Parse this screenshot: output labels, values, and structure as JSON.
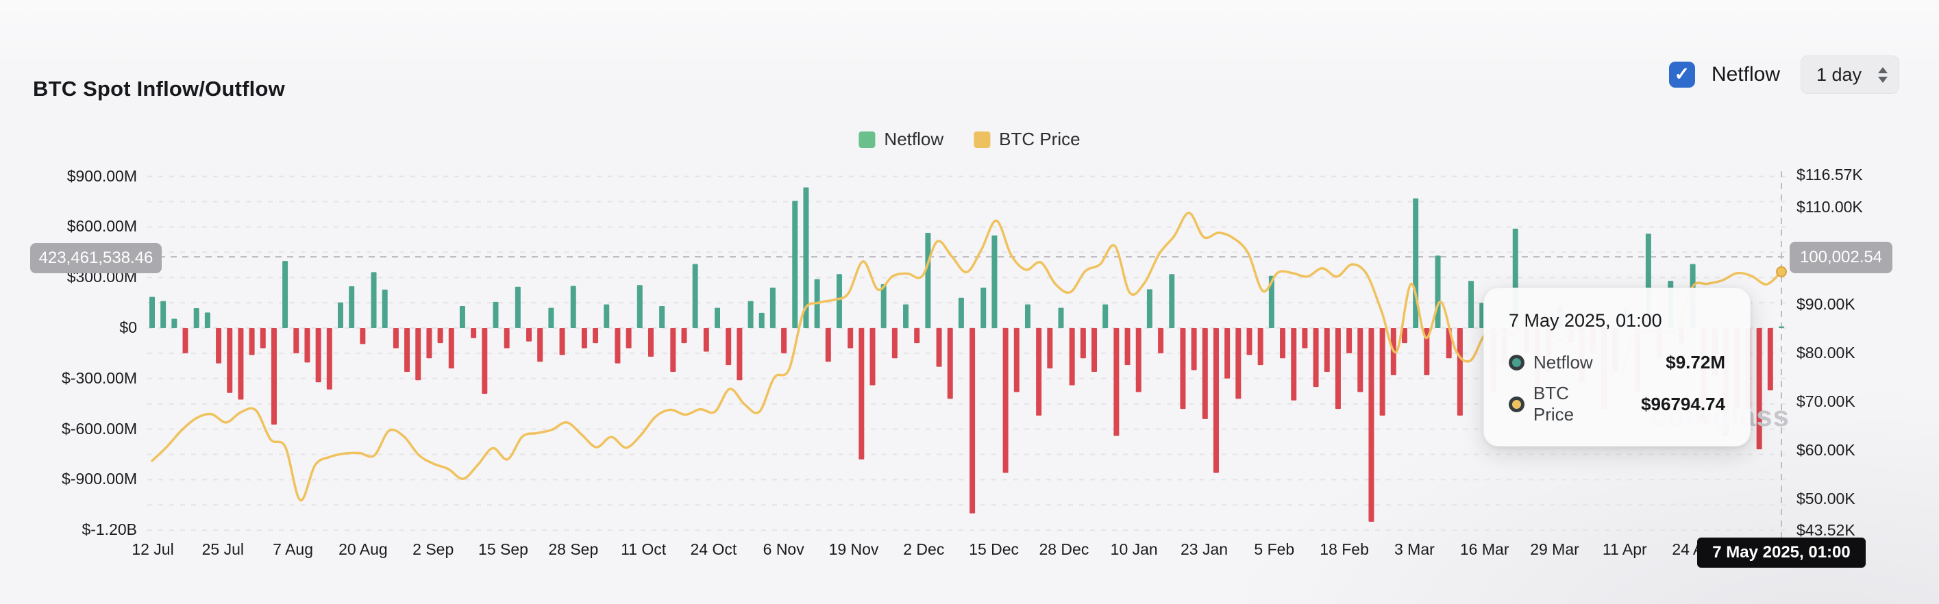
{
  "header": {
    "title": "BTC Spot Inflow/Outflow",
    "netflow_label": "Netflow",
    "netflow_checked": true,
    "interval_value": "1 day"
  },
  "legend": [
    {
      "label": "Netflow",
      "color": "#6bbf8d"
    },
    {
      "label": "BTC Price",
      "color": "#eec160"
    }
  ],
  "tooltip": {
    "title": "7 May 2025, 01:00",
    "rows": [
      {
        "label": "Netflow",
        "value": "$9.72M",
        "color": "#46a08b"
      },
      {
        "label": "BTC Price",
        "value": "$96794.74",
        "color": "#eec160"
      }
    ]
  },
  "crosshair": {
    "left_badge": "423,461,538.46",
    "right_badge": "100,002.54",
    "date_badge": "7 May 2025, 01:00"
  },
  "watermark": {
    "text": "coinglass"
  },
  "colors": {
    "bar_positive": "#4ba58e",
    "bar_negative": "#d9464f",
    "price_line": "#f0c25e",
    "checkbox_blue": "#2f6bcc",
    "axis_badge_gray": "#a9a9ae",
    "date_badge_black": "#0e0e10",
    "gridline": "#e4e4e7",
    "crosshair": "#bcbcc2"
  },
  "chart_data": {
    "type": "bar",
    "title": "BTC Spot Inflow/Outflow",
    "interval": "1 day",
    "grid": true,
    "x_ticks": [
      "12 Jul",
      "25 Jul",
      "7 Aug",
      "20 Aug",
      "2 Sep",
      "15 Sep",
      "28 Sep",
      "11 Oct",
      "24 Oct",
      "6 Nov",
      "19 Nov",
      "2 Dec",
      "15 Dec",
      "28 Dec",
      "10 Jan",
      "23 Jan",
      "5 Feb",
      "18 Feb",
      "3 Mar",
      "16 Mar",
      "29 Mar",
      "11 Apr",
      "24 Apr"
    ],
    "x_range": [
      "12 Jul 2024",
      "7 May 2025, 01:00"
    ],
    "left_axis": {
      "unit": "USD (Netflow)",
      "ticks": [
        {
          "label": "$900.00M",
          "value": 900
        },
        {
          "label": "$600.00M",
          "value": 600
        },
        {
          "label": "$300.00M",
          "value": 300
        },
        {
          "label": "$0",
          "value": 0
        },
        {
          "label": "$-300.00M",
          "value": -300
        },
        {
          "label": "$-600.00M",
          "value": -600
        },
        {
          "label": "$-900.00M",
          "value": -900
        },
        {
          "label": "$-1.20B",
          "value": -1200
        }
      ],
      "gridline_step_m": 150,
      "range_m": [
        -1200,
        900
      ]
    },
    "right_axis": {
      "unit": "USD thousands (BTC Price)",
      "ticks": [
        {
          "label": "$116.57K",
          "value": 116.57
        },
        {
          "label": "$110.00K",
          "value": 110
        },
        {
          "label": "$100.00K",
          "value": 100
        },
        {
          "label": "$90.00K",
          "value": 90
        },
        {
          "label": "$80.00K",
          "value": 80
        },
        {
          "label": "$70.00K",
          "value": 70
        },
        {
          "label": "$60.00K",
          "value": 60
        },
        {
          "label": "$50.00K",
          "value": 50
        },
        {
          "label": "$43.52K",
          "value": 43.52
        }
      ],
      "range_k": [
        43.52,
        116.57
      ]
    },
    "crosshair_point": {
      "date": "7 May 2025, 01:00",
      "netflow_usd": 9720000,
      "btc_price_usd": 96794.74,
      "left_axis_value": 423461538.46,
      "right_axis_value": 100002.54
    },
    "series": [
      {
        "name": "Netflow",
        "type": "bar",
        "unit": "USD millions (approx, sampled)",
        "values": [
          185,
          160,
          55,
          -150,
          118,
          92,
          -210,
          -385,
          -425,
          -160,
          -120,
          -573,
          398,
          -150,
          -205,
          -322,
          -365,
          152,
          248,
          -95,
          332,
          228,
          -120,
          -260,
          -310,
          -180,
          -90,
          -240,
          130,
          -60,
          -390,
          155,
          -120,
          245,
          -80,
          -200,
          120,
          -160,
          250,
          -120,
          -90,
          140,
          -210,
          -120,
          255,
          -170,
          130,
          -260,
          -90,
          380,
          -140,
          120,
          -220,
          -310,
          160,
          90,
          240,
          -150,
          755,
          835,
          290,
          -200,
          320,
          -120,
          -780,
          -340,
          260,
          -180,
          140,
          -90,
          565,
          -230,
          -420,
          180,
          -1100,
          240,
          550,
          -860,
          -380,
          140,
          -520,
          -240,
          120,
          -340,
          -180,
          -260,
          140,
          -640,
          -220,
          -380,
          230,
          -150,
          320,
          -480,
          -250,
          -540,
          -860,
          -300,
          -420,
          -160,
          -220,
          310,
          -180,
          -430,
          -120,
          -350,
          -260,
          -480,
          -150,
          -380,
          -1150,
          -520,
          -280,
          -90,
          770,
          -280,
          430,
          -180,
          -520,
          280,
          150,
          -380,
          -220,
          590,
          -150,
          -420,
          -260,
          130,
          -90,
          -320,
          -150,
          -480,
          -260,
          120,
          -380,
          560,
          -180,
          280,
          -90,
          380,
          -560,
          -280,
          -640,
          -470,
          -480,
          -720,
          -370,
          9.72
        ]
      },
      {
        "name": "BTC Price",
        "type": "line",
        "unit": "USD thousands (approx, sampled)",
        "values": [
          57.9,
          60.8,
          64.2,
          66.7,
          67.5,
          65.8,
          67.9,
          68.3,
          62.3,
          60.7,
          49.8,
          57.0,
          58.7,
          59.4,
          59.5,
          59.0,
          64.1,
          62.9,
          59.1,
          57.3,
          56.2,
          54.2,
          57.1,
          60.5,
          58.2,
          62.9,
          63.6,
          64.3,
          65.8,
          63.3,
          60.7,
          62.8,
          60.6,
          63.2,
          67.0,
          68.4,
          67.4,
          68.5,
          68.0,
          72.7,
          69.5,
          68.0,
          75.0,
          76.7,
          88.7,
          90.4,
          91.0,
          92.3,
          98.9,
          93.1,
          95.9,
          96.4,
          95.9,
          103.0,
          99.9,
          96.7,
          101.4,
          107.3,
          100.2,
          97.2,
          98.7,
          94.2,
          92.6,
          96.9,
          98.3,
          102.1,
          92.5,
          94.5,
          100.5,
          104.1,
          108.9,
          103.9,
          104.8,
          103.7,
          100.6,
          92.8,
          96.6,
          96.5,
          95.8,
          97.5,
          95.8,
          98.3,
          96.3,
          88.7,
          80.3,
          94.3,
          83.2,
          90.6,
          80.7,
          78.5,
          83.9,
          84.0,
          84.2,
          87.5,
          86.9,
          82.6,
          85.2,
          82.5,
          78.2,
          74.6,
          83.5,
          84.5,
          84.5,
          85.2,
          93.7,
          94.3,
          95.0,
          96.5,
          95.9,
          94.2,
          96.8
        ]
      }
    ]
  }
}
